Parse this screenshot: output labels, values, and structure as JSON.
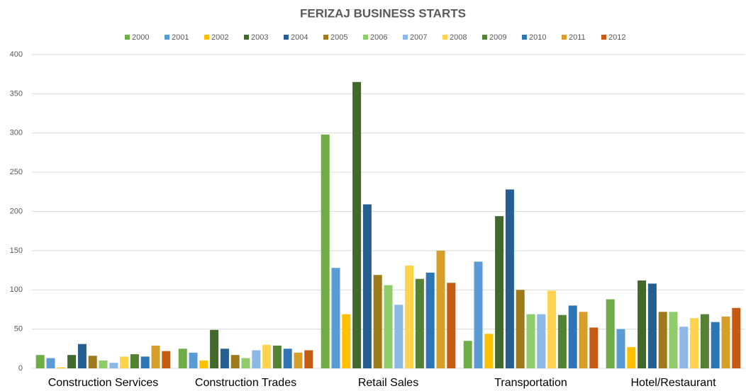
{
  "chart_data": {
    "type": "bar",
    "title": "FERIZAJ BUSINESS STARTS",
    "categories": [
      "Construction Services",
      "Construction Trades",
      "Retail Sales",
      "Transportation",
      "Hotel/Restaurant"
    ],
    "series": [
      {
        "name": "2000",
        "color": "#70ad47",
        "values": [
          17,
          25,
          298,
          35,
          88
        ]
      },
      {
        "name": "2001",
        "color": "#5b9bd5",
        "values": [
          13,
          20,
          128,
          136,
          50
        ]
      },
      {
        "name": "2002",
        "color": "#ffc000",
        "values": [
          1,
          10,
          69,
          44,
          27
        ]
      },
      {
        "name": "2003",
        "color": "#43682b",
        "values": [
          17,
          49,
          365,
          194,
          112
        ]
      },
      {
        "name": "2004",
        "color": "#255e91",
        "values": [
          31,
          25,
          209,
          228,
          108
        ]
      },
      {
        "name": "2005",
        "color": "#9e7a1a",
        "values": [
          16,
          17,
          119,
          100,
          72
        ]
      },
      {
        "name": "2006",
        "color": "#8fcc6a",
        "values": [
          10,
          13,
          106,
          69,
          72
        ]
      },
      {
        "name": "2007",
        "color": "#8cb8e6",
        "values": [
          7,
          23,
          81,
          69,
          53
        ]
      },
      {
        "name": "2008",
        "color": "#ffd34d",
        "values": [
          15,
          30,
          131,
          99,
          64
        ]
      },
      {
        "name": "2009",
        "color": "#548235",
        "values": [
          18,
          29,
          114,
          68,
          69
        ]
      },
      {
        "name": "2010",
        "color": "#2e75b6",
        "values": [
          15,
          25,
          122,
          80,
          59
        ]
      },
      {
        "name": "2011",
        "color": "#d69e2b",
        "values": [
          29,
          20,
          150,
          72,
          66
        ]
      },
      {
        "name": "2012",
        "color": "#c55a11",
        "values": [
          22,
          23,
          109,
          52,
          77
        ]
      }
    ],
    "ylim": [
      0,
      400
    ],
    "yticks": [
      0,
      50,
      100,
      150,
      200,
      250,
      300,
      350,
      400
    ],
    "grid": true
  }
}
